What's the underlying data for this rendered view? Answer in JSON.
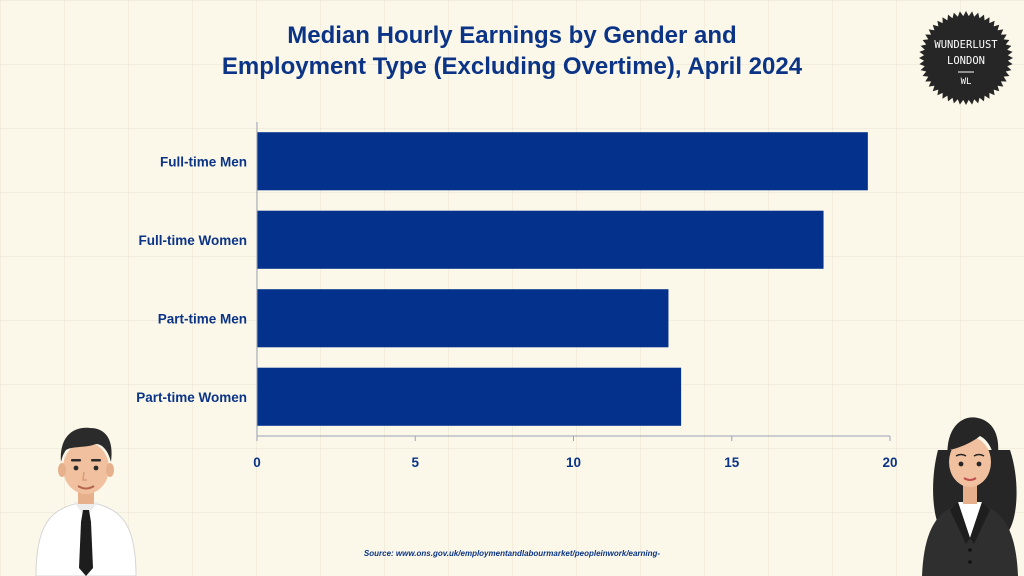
{
  "title_line1": "Median Hourly Earnings by Gender and",
  "title_line2": "Employment Type (Excluding Overtime), April 2024",
  "logo": {
    "line1": "WUNDERLUST",
    "line2": "LONDON",
    "monogram": "WL"
  },
  "source": "Source: www.ons.gov.uk/employmentandlabourmarket/peopleinwork/earning-",
  "colors": {
    "bar": "#03318b",
    "text": "#0b3487",
    "background": "#fbf8ea"
  },
  "illustrations": {
    "left": "man-icon",
    "right": "woman-icon"
  },
  "chart_data": {
    "type": "bar",
    "orientation": "horizontal",
    "categories": [
      "Full-time Men",
      "Full-time Women",
      "Part-time Men",
      "Part-time Women"
    ],
    "values": [
      19.3,
      17.9,
      13.0,
      13.4
    ],
    "xlim": [
      0,
      20
    ],
    "xticks": [
      0,
      5,
      10,
      15,
      20
    ],
    "grid": false
  }
}
